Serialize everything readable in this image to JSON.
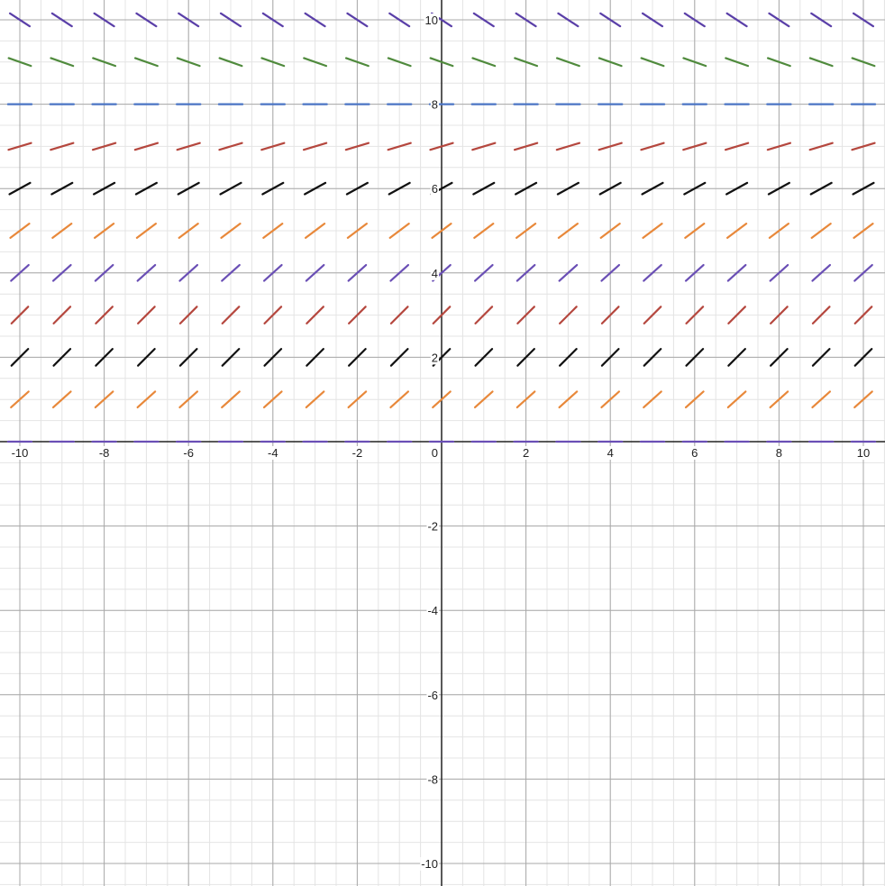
{
  "chart_data": {
    "type": "scatter",
    "title": "",
    "xlabel": "",
    "ylabel": "",
    "xlim": [
      -10.5,
      10.5
    ],
    "ylim": [
      -10.5,
      10.5
    ],
    "grid": true,
    "x_ticks": [
      "-10",
      "-8",
      "-6",
      "-4",
      "-2",
      "2",
      "4",
      "6",
      "8",
      "10"
    ],
    "y_ticks": [
      "10",
      "8",
      "6",
      "4",
      "2",
      "-2",
      "-4",
      "-6",
      "-8",
      "-10"
    ],
    "origin_label": "0",
    "columns_x": [
      -10,
      -9,
      -8,
      -7,
      -6,
      -5,
      -4,
      -3,
      -2,
      -1,
      0,
      1,
      2,
      3,
      4,
      5,
      6,
      7,
      8,
      9,
      10
    ],
    "series": [
      {
        "name": "y=0",
        "y": 0,
        "slope": 0,
        "color": "#6a4fb5"
      },
      {
        "name": "y=1",
        "y": 1,
        "slope": 0.9,
        "color": "#e8883a"
      },
      {
        "name": "y=2",
        "y": 2,
        "slope": 1.0,
        "color": "#111111"
      },
      {
        "name": "y=3",
        "y": 3,
        "slope": 1.0,
        "color": "#b5473e"
      },
      {
        "name": "y=4",
        "y": 4,
        "slope": 0.9,
        "color": "#6a4fb5"
      },
      {
        "name": "y=5",
        "y": 5,
        "slope": 0.75,
        "color": "#e8883a"
      },
      {
        "name": "y=6",
        "y": 6,
        "slope": 0.55,
        "color": "#111111"
      },
      {
        "name": "y=7",
        "y": 7,
        "slope": 0.3,
        "color": "#b5473e"
      },
      {
        "name": "y=8",
        "y": 8,
        "slope": 0,
        "color": "#4a74c4"
      },
      {
        "name": "y=9",
        "y": 9,
        "slope": -0.35,
        "color": "#4f8a3c"
      },
      {
        "name": "y=10",
        "y": 10,
        "slope": -0.65,
        "color": "#5a3fa8"
      }
    ]
  }
}
